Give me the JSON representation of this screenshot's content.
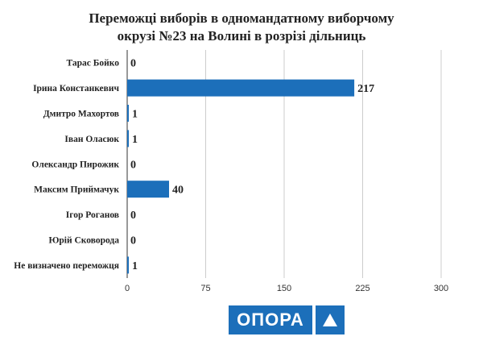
{
  "chart_data": {
    "type": "bar",
    "orientation": "horizontal",
    "title_lines": [
      "Переможці виборів в одномандатному виборчому",
      "окрузі №23 на Волині в розрізі дільниць"
    ],
    "categories": [
      "Тарас Бойко",
      "Ірина Констанкевич",
      "Дмитро Махортов",
      "Іван Оласюк",
      "Олександр Пирожик",
      "Максим Приймачук",
      "Ігор Роганов",
      "Юрій Сковорода",
      "Не визначено переможця"
    ],
    "values": [
      0,
      217,
      1,
      1,
      0,
      40,
      0,
      0,
      1
    ],
    "value_labels": [
      "0",
      "217",
      "1",
      "1",
      "0",
      "40",
      "0",
      "0",
      "1"
    ],
    "xlim": [
      0,
      300
    ],
    "xticks": [
      0,
      75,
      150,
      225,
      300
    ],
    "xtick_labels": [
      "0",
      "75",
      "150",
      "225",
      "300"
    ],
    "grid": "vertical",
    "bar_color": "#1c6fba",
    "grid_color": "#cccccc"
  },
  "logo": {
    "text": "ОПОРА",
    "color": "#1c6fba",
    "mark": "triangle-icon"
  }
}
